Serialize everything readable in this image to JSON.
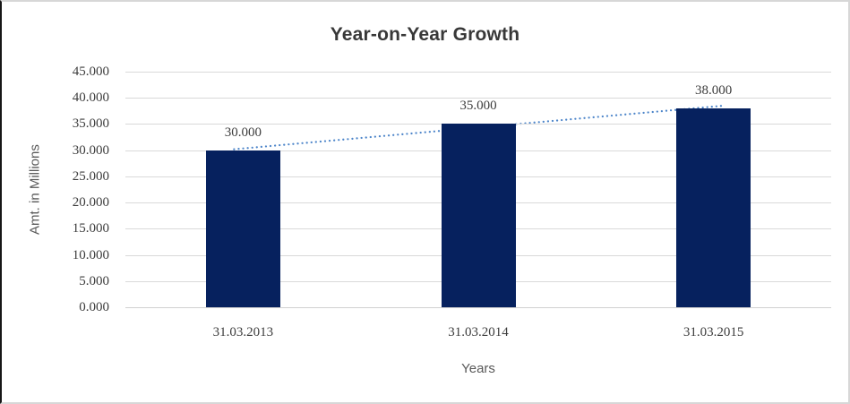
{
  "chart_data": {
    "type": "bar",
    "title": "Year-on-Year Growth",
    "categories": [
      "31.03.2013",
      "31.03.2014",
      "31.03.2015"
    ],
    "values": [
      30.0,
      35.0,
      38.0
    ],
    "data_labels": [
      "30.000",
      "35.000",
      "38.000"
    ],
    "xlabel": "Years",
    "ylabel": "Amt. in Millions",
    "ylim": [
      0,
      45
    ],
    "ytick_step": 5,
    "ytick_labels": [
      "0.000",
      "5.000",
      "10.000",
      "15.000",
      "20.000",
      "25.000",
      "30.000",
      "35.000",
      "40.000",
      "45.000"
    ],
    "grid": "horizontal-major",
    "legend": "none",
    "trendline": {
      "type": "linear",
      "style": "dotted"
    },
    "colors": {
      "bar": "#06215e",
      "trendline": "#4e86ca",
      "gridline": "#d9d9d9",
      "axis_baseline": "#d0d0d0",
      "title_text": "#383838",
      "tick_text": "#3d3d3d",
      "axis_title_text": "#595959",
      "frame_border": "#d7d7d7",
      "frame_left_edge": "#161616",
      "background": "#ffffff"
    }
  }
}
